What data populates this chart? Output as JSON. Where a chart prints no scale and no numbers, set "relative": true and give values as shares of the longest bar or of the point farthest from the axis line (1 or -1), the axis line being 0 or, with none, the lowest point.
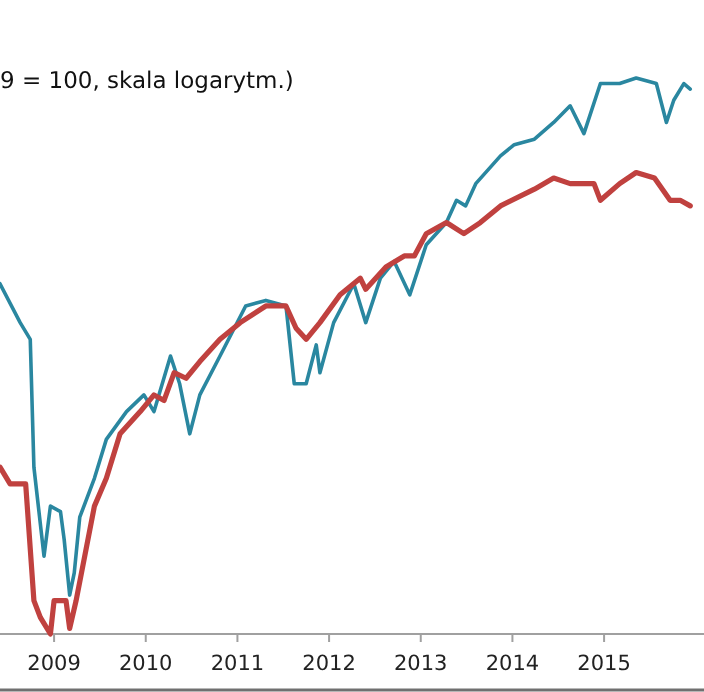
{
  "chart_data": {
    "type": "line",
    "subtitle": "9 = 100, skala logarytm.)",
    "relative": true,
    "xlim": [
      2008.41,
      2016.09
    ],
    "xticks": [
      2009,
      2010,
      2011,
      2012,
      2013,
      2014,
      2015
    ],
    "marker": "none",
    "line_style": "solid",
    "series": [
      {
        "color": "#2a87a0",
        "x": [
          2008.41,
          2008.63,
          2008.74,
          2008.78,
          2008.89,
          2008.96,
          2009.07,
          2009.11,
          2009.17,
          2009.22,
          2009.28,
          2009.44,
          2009.57,
          2009.79,
          2009.98,
          2010.09,
          2010.27,
          2010.37,
          2010.48,
          2010.59,
          2010.81,
          2011.09,
          2011.31,
          2011.53,
          2011.62,
          2011.75,
          2011.86,
          2011.9,
          2012.05,
          2012.27,
          2012.4,
          2012.56,
          2012.71,
          2012.88,
          2013.06,
          2013.28,
          2013.39,
          2013.49,
          2013.6,
          2013.87,
          2014.02,
          2014.24,
          2014.45,
          2014.63,
          2014.78,
          2014.96,
          2015.17,
          2015.35,
          2015.57,
          2015.68,
          2015.76,
          2015.87,
          2015.94
        ],
        "values": [
          0.63,
          0.56,
          0.53,
          0.3,
          0.14,
          0.23,
          0.22,
          0.17,
          0.07,
          0.11,
          0.21,
          0.28,
          0.35,
          0.4,
          0.43,
          0.4,
          0.5,
          0.45,
          0.36,
          0.43,
          0.5,
          0.59,
          0.6,
          0.59,
          0.45,
          0.45,
          0.52,
          0.47,
          0.56,
          0.63,
          0.56,
          0.64,
          0.67,
          0.61,
          0.7,
          0.74,
          0.78,
          0.77,
          0.81,
          0.86,
          0.88,
          0.89,
          0.92,
          0.95,
          0.9,
          0.99,
          0.99,
          1,
          0.99,
          0.92,
          0.96,
          0.99,
          0.98
        ]
      },
      {
        "color": "#c0413f",
        "x": [
          2008.41,
          2008.52,
          2008.69,
          2008.78,
          2008.85,
          2008.96,
          2009.0,
          2009.13,
          2009.17,
          2009.24,
          2009.44,
          2009.57,
          2009.72,
          2009.94,
          2010.09,
          2010.2,
          2010.31,
          2010.44,
          2010.59,
          2010.81,
          2011.03,
          2011.31,
          2011.53,
          2011.64,
          2011.75,
          2011.9,
          2012.12,
          2012.34,
          2012.4,
          2012.62,
          2012.82,
          2012.93,
          2013.06,
          2013.28,
          2013.47,
          2013.65,
          2013.87,
          2014.24,
          2014.45,
          2014.63,
          2014.89,
          2014.96,
          2015.17,
          2015.35,
          2015.55,
          2015.72,
          2015.83,
          2015.94
        ],
        "values": [
          0.3,
          0.27,
          0.27,
          0.06,
          0.03,
          0,
          0.06,
          0.06,
          0.01,
          0.06,
          0.23,
          0.28,
          0.36,
          0.4,
          0.43,
          0.42,
          0.47,
          0.46,
          0.49,
          0.53,
          0.56,
          0.59,
          0.59,
          0.55,
          0.53,
          0.56,
          0.61,
          0.64,
          0.62,
          0.66,
          0.68,
          0.68,
          0.72,
          0.74,
          0.72,
          0.74,
          0.77,
          0.8,
          0.82,
          0.81,
          0.81,
          0.78,
          0.81,
          0.83,
          0.82,
          0.78,
          0.78,
          0.77
        ]
      }
    ]
  }
}
